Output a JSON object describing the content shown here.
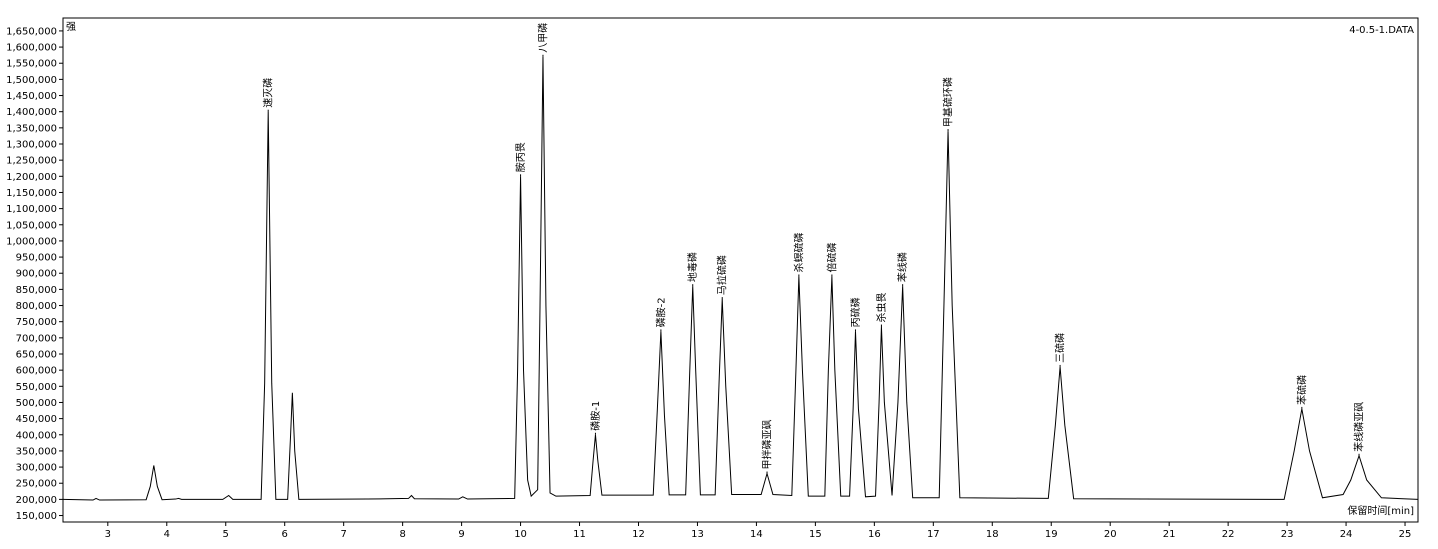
{
  "chart_data": {
    "type": "line",
    "file_label": "4-0.5-1.DATA",
    "y_label": "强",
    "x_label": "保留时间[min]",
    "xlim": [
      2.24,
      25.22
    ],
    "ylim": [
      130000,
      1690000
    ],
    "xticks": [
      3,
      4,
      5,
      6,
      7,
      8,
      9,
      10,
      11,
      12,
      13,
      14,
      15,
      16,
      17,
      18,
      19,
      20,
      21,
      22,
      23,
      24,
      25
    ],
    "yticks": [
      {
        "value": 150000,
        "label": "150,000"
      },
      {
        "value": 200000,
        "label": "200,000"
      },
      {
        "value": 250000,
        "label": "250,000"
      },
      {
        "value": 300000,
        "label": "300,000"
      },
      {
        "value": 350000,
        "label": "350,000"
      },
      {
        "value": 400000,
        "label": "400,000"
      },
      {
        "value": 450000,
        "label": "450,000"
      },
      {
        "value": 500000,
        "label": "500,000"
      },
      {
        "value": 550000,
        "label": "550,000"
      },
      {
        "value": 600000,
        "label": "600,000"
      },
      {
        "value": 650000,
        "label": "650,000"
      },
      {
        "value": 700000,
        "label": "700,000"
      },
      {
        "value": 750000,
        "label": "750,000"
      },
      {
        "value": 800000,
        "label": "800,000"
      },
      {
        "value": 850000,
        "label": "850,000"
      },
      {
        "value": 900000,
        "label": "900,000"
      },
      {
        "value": 950000,
        "label": "950,000"
      },
      {
        "value": 1000000,
        "label": "1,000,000"
      },
      {
        "value": 1050000,
        "label": "1,050,000"
      },
      {
        "value": 1100000,
        "label": "1,100,000"
      },
      {
        "value": 1150000,
        "label": "1,150,000"
      },
      {
        "value": 1200000,
        "label": "1,200,000"
      },
      {
        "value": 1250000,
        "label": "1,250,000"
      },
      {
        "value": 1300000,
        "label": "1,300,000"
      },
      {
        "value": 1350000,
        "label": "1,350,000"
      },
      {
        "value": 1400000,
        "label": "1,400,000"
      },
      {
        "value": 1450000,
        "label": "1,450,000"
      },
      {
        "value": 1500000,
        "label": "1,500,000"
      },
      {
        "value": 1550000,
        "label": "1,550,000"
      },
      {
        "value": 1600000,
        "label": "1,600,000"
      },
      {
        "value": 1650000,
        "label": "1,650,000"
      }
    ],
    "x": [
      2.24,
      2.75,
      2.8,
      2.86,
      3.65,
      3.72,
      3.78,
      3.84,
      3.92,
      4.15,
      4.2,
      4.25,
      4.95,
      5.05,
      5.12,
      5.6,
      5.66,
      5.72,
      5.78,
      5.85,
      6.05,
      6.1,
      6.13,
      6.17,
      6.24,
      7.4,
      8.1,
      8.15,
      8.2,
      8.95,
      9.02,
      9.1,
      9.9,
      9.95,
      10.0,
      10.05,
      10.12,
      10.18,
      10.29,
      10.33,
      10.38,
      10.43,
      10.5,
      10.6,
      11.18,
      11.23,
      11.27,
      11.31,
      11.38,
      12.25,
      12.32,
      12.38,
      12.44,
      12.52,
      12.8,
      12.87,
      12.92,
      12.97,
      13.05,
      13.3,
      13.37,
      13.42,
      13.48,
      13.58,
      14.08,
      14.18,
      14.28,
      14.6,
      14.67,
      14.72,
      14.78,
      14.88,
      15.16,
      15.22,
      15.28,
      15.33,
      15.43,
      15.58,
      15.64,
      15.68,
      15.73,
      15.85,
      16.02,
      16.08,
      16.12,
      16.17,
      16.3,
      16.4,
      16.48,
      16.55,
      16.65,
      17.1,
      17.18,
      17.25,
      17.32,
      17.45,
      18.95,
      19.07,
      19.15,
      19.23,
      19.38,
      22.95,
      23.12,
      23.25,
      23.38,
      23.6,
      23.95,
      24.08,
      24.22,
      24.35,
      24.6,
      25.22
    ],
    "series": [
      {
        "color": "#000000",
        "values": [
          200000,
          198000,
          203000,
          198000,
          199000,
          240000,
          305000,
          240000,
          199000,
          201000,
          203000,
          200000,
          200000,
          212000,
          200000,
          200000,
          560000,
          1400000,
          560000,
          200000,
          200000,
          400000,
          530000,
          350000,
          200000,
          201000,
          203000,
          212000,
          202000,
          201000,
          208000,
          201000,
          203000,
          600000,
          1200000,
          600000,
          260000,
          210000,
          230000,
          800000,
          1570000,
          800000,
          220000,
          210000,
          212000,
          320000,
          400000,
          320000,
          213000,
          213000,
          480000,
          720000,
          460000,
          214000,
          214000,
          600000,
          860000,
          600000,
          214000,
          214000,
          580000,
          820000,
          550000,
          215000,
          215000,
          280000,
          215000,
          212000,
          600000,
          890000,
          600000,
          210000,
          210000,
          600000,
          890000,
          600000,
          210000,
          210000,
          480000,
          720000,
          480000,
          208000,
          210000,
          500000,
          735000,
          500000,
          212000,
          500000,
          860000,
          500000,
          205000,
          205000,
          800000,
          1340000,
          800000,
          205000,
          203000,
          430000,
          610000,
          430000,
          202000,
          200000,
          350000,
          480000,
          350000,
          205000,
          215000,
          260000,
          335000,
          260000,
          205000,
          200000
        ]
      }
    ],
    "annotations": [
      {
        "text": "速灭磷",
        "x": 5.72,
        "y": 1400000
      },
      {
        "text": "胺丙畏",
        "x": 10.0,
        "y": 1200000
      },
      {
        "text": "八甲磷",
        "x": 10.38,
        "y": 1570000
      },
      {
        "text": "磷胺-1",
        "x": 11.27,
        "y": 400000
      },
      {
        "text": "磷胺-2",
        "x": 12.38,
        "y": 720000
      },
      {
        "text": "地毒磷",
        "x": 12.92,
        "y": 860000
      },
      {
        "text": "马拉硫磷",
        "x": 13.42,
        "y": 820000
      },
      {
        "text": "甲拌磷亚砜",
        "x": 14.18,
        "y": 280000
      },
      {
        "text": "杀螟硫磷",
        "x": 14.72,
        "y": 890000
      },
      {
        "text": "倍硫磷",
        "x": 15.28,
        "y": 890000
      },
      {
        "text": "丙硫磷",
        "x": 15.68,
        "y": 720000
      },
      {
        "text": "杀虫畏",
        "x": 16.12,
        "y": 735000
      },
      {
        "text": "苯线磷",
        "x": 16.48,
        "y": 860000
      },
      {
        "text": "甲基硫环磷",
        "x": 17.25,
        "y": 1340000
      },
      {
        "text": "三硫磷",
        "x": 19.15,
        "y": 610000
      },
      {
        "text": "苯硫磷",
        "x": 23.25,
        "y": 480000
      },
      {
        "text": "苯线磷亚砜",
        "x": 24.22,
        "y": 335000
      }
    ]
  }
}
